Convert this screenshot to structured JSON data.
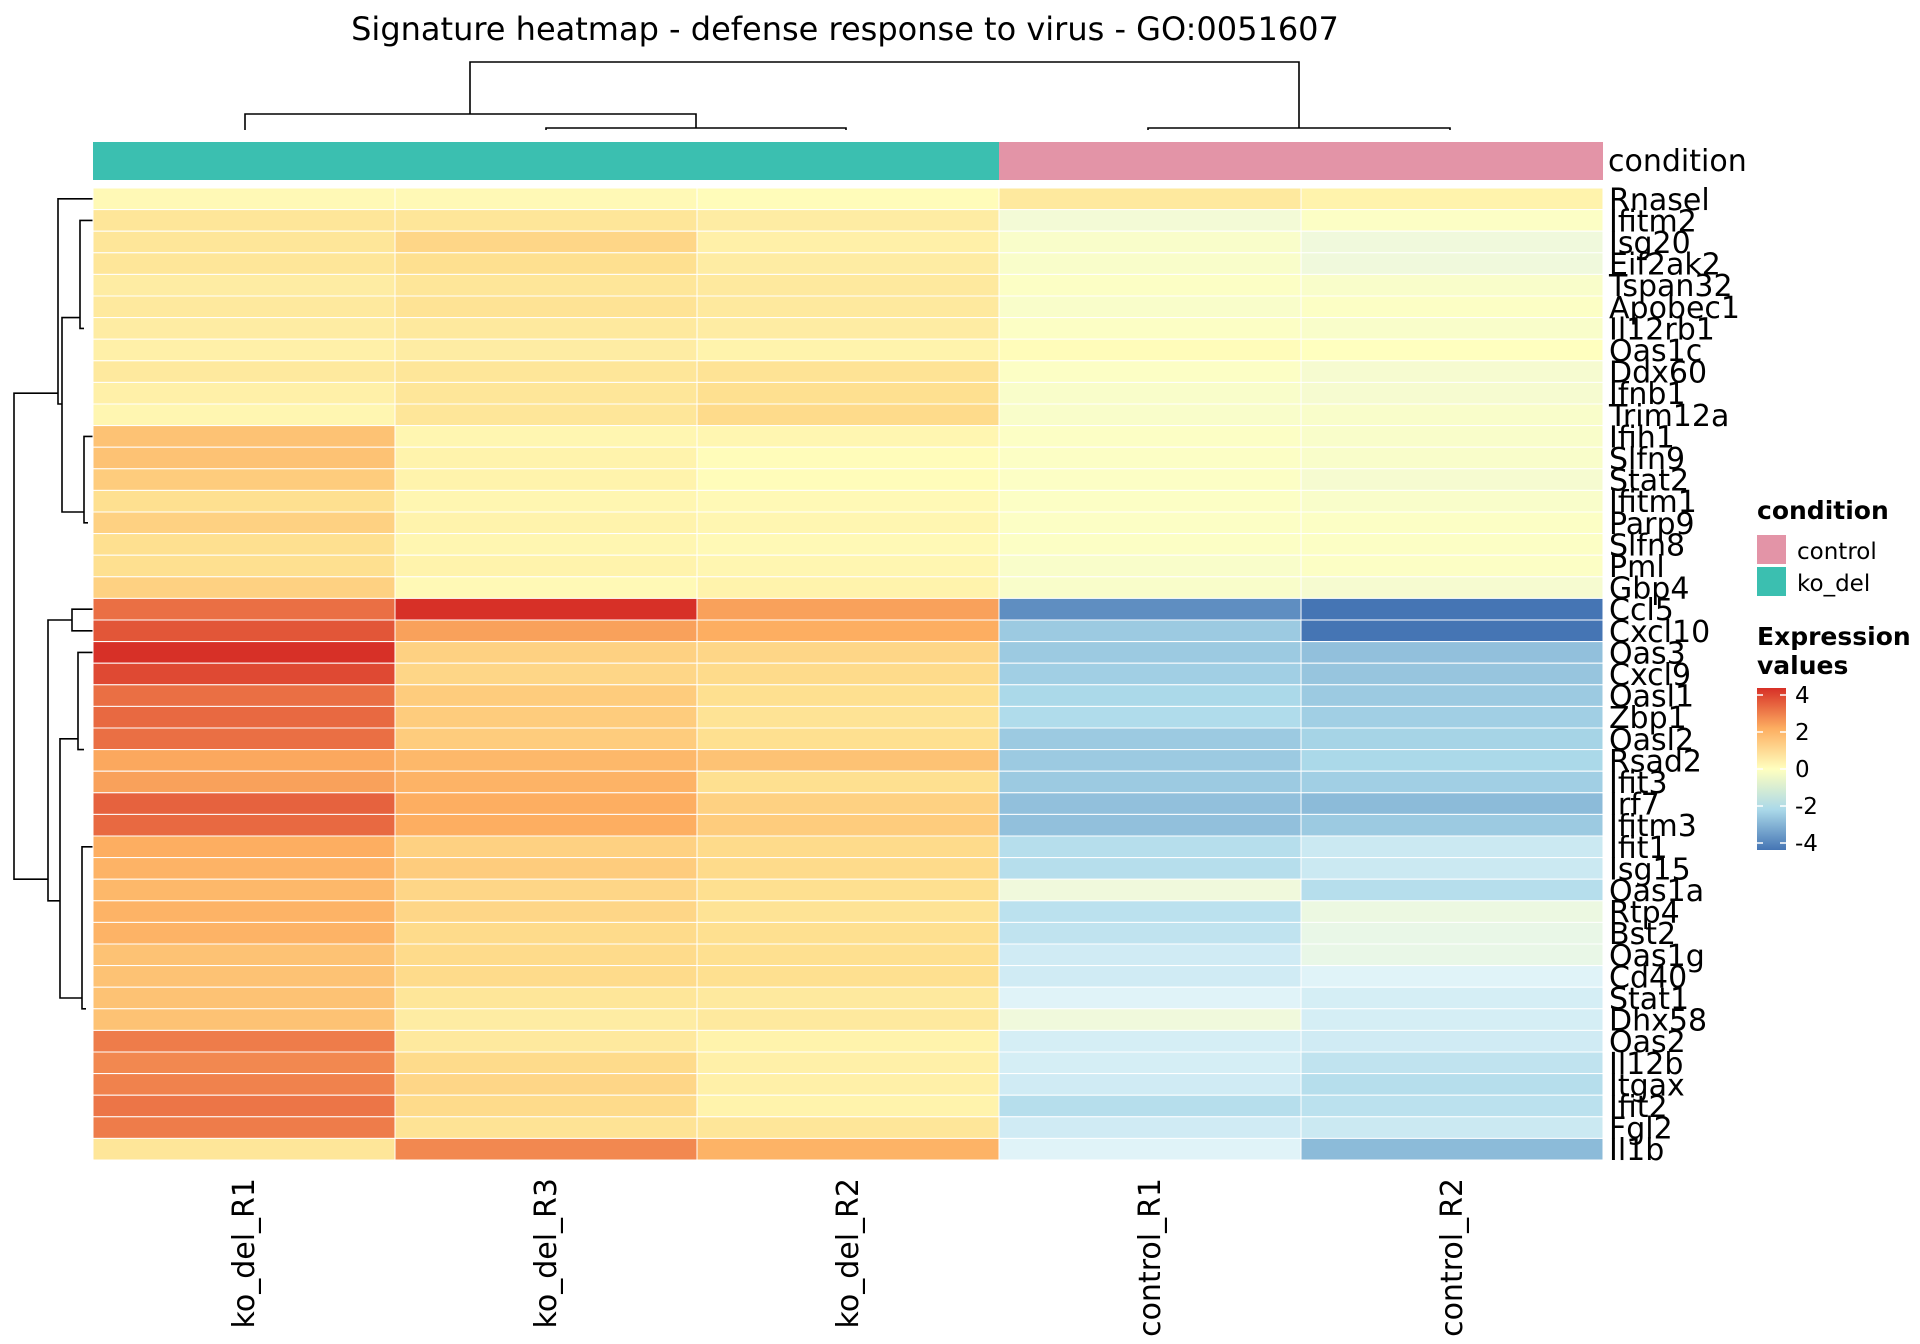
{
  "chart_data": {
    "type": "heatmap",
    "title": "Signature heatmap - defense response to virus - GO:0051607",
    "columns": [
      "ko_del_R1",
      "ko_del_R3",
      "ko_del_R2",
      "control_R1",
      "control_R2"
    ],
    "column_condition": [
      "ko_del",
      "ko_del",
      "ko_del",
      "control",
      "control"
    ],
    "annotation_label": "condition",
    "rows": [
      "Rnasel",
      "Ifitm2",
      "Isg20",
      "Eif2ak2",
      "Tspan32",
      "Apobec1",
      "Il12rb1",
      "Oas1c",
      "Ddx60",
      "Ifnb1",
      "Trim12a",
      "Ifih1",
      "Slfn9",
      "Stat2",
      "Ifitm1",
      "Parp9",
      "Slfn8",
      "Pml",
      "Gbp4",
      "Ccl5",
      "Cxcl10",
      "Oas3",
      "Cxcl9",
      "Oasl1",
      "Zbp1",
      "Oasl2",
      "Rsad2",
      "Ifit3",
      "Irf7",
      "Ifitm3",
      "Ifit1",
      "Isg15",
      "Oas1a",
      "Rtp4",
      "Bst2",
      "Oas1g",
      "Cd40",
      "Stat1",
      "Dhx58",
      "Oas2",
      "Il12b",
      "Itgax",
      "Ifit2",
      "Fgl2",
      "Il1b"
    ],
    "values": [
      [
        0.2,
        0.2,
        0.1,
        0.7,
        0.4
      ],
      [
        0.8,
        0.8,
        0.6,
        -0.4,
        -0.1
      ],
      [
        0.8,
        1.2,
        0.5,
        -0.2,
        -0.5
      ],
      [
        0.8,
        1.0,
        0.6,
        -0.2,
        -0.5
      ],
      [
        0.6,
        0.8,
        0.7,
        -0.1,
        -0.2
      ],
      [
        0.7,
        0.9,
        0.7,
        -0.2,
        -0.1
      ],
      [
        0.6,
        0.7,
        0.6,
        -0.1,
        -0.2
      ],
      [
        0.5,
        0.6,
        0.4,
        0.1,
        0.0
      ],
      [
        0.7,
        0.8,
        0.9,
        -0.1,
        -0.3
      ],
      [
        0.5,
        0.8,
        1.0,
        -0.2,
        -0.3
      ],
      [
        0.3,
        0.8,
        1.1,
        -0.2,
        -0.2
      ],
      [
        1.6,
        0.3,
        0.3,
        -0.1,
        -0.2
      ],
      [
        1.6,
        0.4,
        0.1,
        -0.1,
        -0.2
      ],
      [
        1.4,
        0.4,
        0.1,
        -0.1,
        -0.3
      ],
      [
        1.0,
        0.3,
        0.2,
        -0.1,
        -0.2
      ],
      [
        1.3,
        0.4,
        0.3,
        -0.1,
        -0.1
      ],
      [
        1.0,
        0.3,
        0.2,
        -0.1,
        -0.1
      ],
      [
        1.0,
        0.4,
        0.3,
        -0.2,
        -0.1
      ],
      [
        1.3,
        0.2,
        0.4,
        -0.2,
        -0.3
      ],
      [
        3.0,
        4.1,
        2.2,
        -3.5,
        -4.0
      ],
      [
        3.4,
        2.2,
        2.0,
        -2.3,
        -4.1
      ],
      [
        4.0,
        1.3,
        1.2,
        -2.3,
        -2.5
      ],
      [
        3.6,
        1.2,
        1.1,
        -2.2,
        -2.4
      ],
      [
        3.0,
        1.4,
        1.0,
        -2.0,
        -2.3
      ],
      [
        3.1,
        1.4,
        0.9,
        -1.9,
        -2.2
      ],
      [
        3.0,
        1.4,
        1.0,
        -2.3,
        -2.1
      ],
      [
        2.1,
        1.8,
        1.6,
        -2.3,
        -2.0
      ],
      [
        2.2,
        1.9,
        1.0,
        -2.3,
        -2.2
      ],
      [
        3.2,
        2.0,
        1.3,
        -2.5,
        -2.6
      ],
      [
        3.1,
        2.0,
        1.4,
        -2.5,
        -2.3
      ],
      [
        2.0,
        1.3,
        1.1,
        -1.8,
        -1.4
      ],
      [
        1.9,
        1.4,
        1.1,
        -1.8,
        -1.4
      ],
      [
        1.8,
        1.2,
        1.0,
        -0.5,
        -1.8
      ],
      [
        1.9,
        1.2,
        0.9,
        -1.7,
        -0.6
      ],
      [
        1.9,
        1.1,
        1.0,
        -1.6,
        -0.7
      ],
      [
        1.6,
        1.1,
        1.0,
        -1.3,
        -0.7
      ],
      [
        1.6,
        1.1,
        1.0,
        -1.3,
        -1.0
      ],
      [
        1.6,
        0.8,
        0.7,
        -1.0,
        -1.2
      ],
      [
        1.6,
        0.6,
        0.7,
        -0.5,
        -1.2
      ],
      [
        2.8,
        0.7,
        0.4,
        -1.2,
        -1.3
      ],
      [
        2.6,
        1.1,
        0.5,
        -1.2,
        -1.6
      ],
      [
        2.7,
        1.2,
        0.5,
        -1.3,
        -1.8
      ],
      [
        2.9,
        1.1,
        0.4,
        -1.8,
        -1.7
      ],
      [
        2.8,
        0.9,
        0.8,
        -1.3,
        -1.4
      ],
      [
        0.8,
        2.6,
        1.9,
        -1.0,
        -2.6
      ]
    ],
    "legend": {
      "condition_title": "condition",
      "condition_entries": [
        {
          "label": "control",
          "color": "#E394A7"
        },
        {
          "label": "ko_del",
          "color": "#3BBFB0"
        }
      ],
      "scale_title_line1": "Expression",
      "scale_title_line2": "values",
      "scale_ticks": [
        4,
        2,
        0,
        -2,
        -4
      ],
      "scale_tick_labels": [
        "4",
        "2",
        "0",
        "-2",
        "-4"
      ],
      "scale_range": [
        -4,
        4
      ]
    },
    "colors": {
      "high": "#D73027",
      "mid_high": "#FDAE61",
      "mid_low": "#FEE090",
      "neutral": "#FFFFBF",
      "low1": "#E0F3F8",
      "low2": "#ABD9E9",
      "low": "#4575B4"
    },
    "legend_position": "right",
    "row_dendrogram": true,
    "column_dendrogram": true
  }
}
